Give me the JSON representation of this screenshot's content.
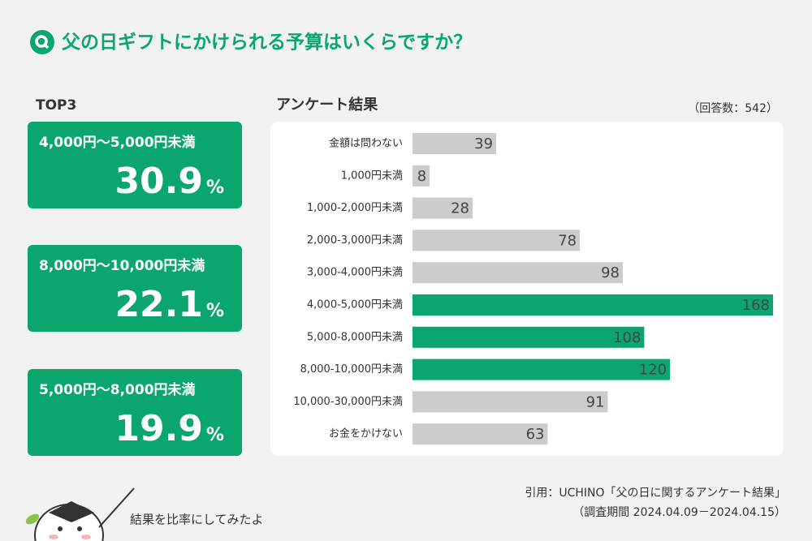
{
  "title": "父の日ギフトにかけられる予算はいくらですか？",
  "top3_heading": "TOP3",
  "top3": [
    {
      "label": "4,000円～5,000円未満",
      "percent": 30.9,
      "unit": "%"
    },
    {
      "label": "8,000円～10,000円未満",
      "percent": 22.1,
      "unit": "%"
    },
    {
      "label": "5,000円～8,000円未満",
      "percent": 19.9,
      "unit": "%"
    }
  ],
  "chart_data": {
    "type": "bar",
    "orientation": "horizontal",
    "title": "アンケート結果",
    "subtitle": "（回答数：542）",
    "categories": [
      "金額は問わない",
      "1,000円未満",
      "1,000-2,000円未満",
      "2,000-3,000円未満",
      "3,000-4,000円未満",
      "4,000-5,000円未満",
      "5,000-8,000円未満",
      "8,000-10,000円未満",
      "10,000-30,000円未満",
      "お金をかけない"
    ],
    "values": [
      39,
      8,
      28,
      78,
      98,
      168,
      108,
      120,
      91,
      63
    ],
    "colors": [
      "#cccccc",
      "#cccccc",
      "#cccccc",
      "#cccccc",
      "#cccccc",
      "#0aa66e",
      "#0aa66e",
      "#0aa66e",
      "#cccccc",
      "#cccccc"
    ]
  },
  "mascot_text": "結果を比率にしてみたよ",
  "source": "引用：UCHINO「父の日に関するアンケート結果」",
  "period": "（調査期間 2024.04.09－2024.04.15）"
}
